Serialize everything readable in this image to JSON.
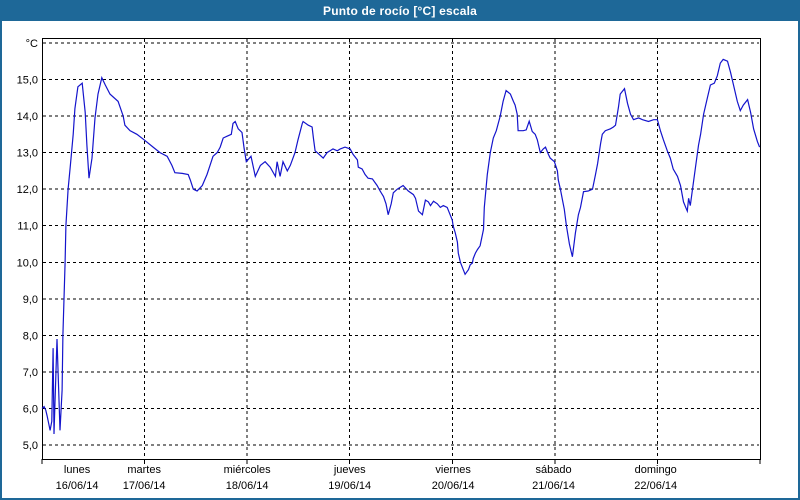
{
  "window": {
    "title": "Punto de rocío [°C] escala"
  },
  "colors": {
    "title_bar": "#1e6898",
    "window_border": "#1e6898",
    "series_line": "#1414cc",
    "grid": "#000000",
    "plot_background": "#ffffff",
    "label_text": "#000000"
  },
  "chart_data": {
    "type": "line",
    "title": "Punto de rocío [°C] escala",
    "ylabel": "°C",
    "y_unit_label": "°C",
    "ylim": [
      4.6,
      16.15
    ],
    "xlim_hours": [
      0,
      168
    ],
    "grid": "dashed",
    "legend": "none",
    "y_ticks": [
      {
        "v": 15,
        "label": "15,0"
      },
      {
        "v": 14,
        "label": "14,0"
      },
      {
        "v": 13,
        "label": "13,0"
      },
      {
        "v": 12,
        "label": "12,0"
      },
      {
        "v": 11,
        "label": "11,0"
      },
      {
        "v": 10,
        "label": "10,0"
      },
      {
        "v": 9,
        "label": "9,0"
      },
      {
        "v": 8,
        "label": "8,0"
      },
      {
        "v": 7,
        "label": "7,0"
      },
      {
        "v": 6,
        "label": "6,0"
      },
      {
        "v": 5,
        "label": "5,0"
      }
    ],
    "y_gridline_values": [
      5,
      6,
      7,
      8,
      9,
      10,
      11,
      12,
      13,
      14,
      15,
      16
    ],
    "x_gridlines_hours": [
      24,
      48,
      72,
      96,
      120,
      144
    ],
    "x_ticks_hours": [
      0,
      24,
      48,
      72,
      96,
      120,
      144,
      168
    ],
    "days": [
      {
        "name": "lunes",
        "date": "16/06/14",
        "center_hours": 8.2
      },
      {
        "name": "martes",
        "date": "17/06/14",
        "center_hours": 23.9
      },
      {
        "name": "miércoles",
        "date": "18/06/14",
        "center_hours": 48
      },
      {
        "name": "jueves",
        "date": "19/06/14",
        "center_hours": 72
      },
      {
        "name": "viernes",
        "date": "20/06/14",
        "center_hours": 96.2
      },
      {
        "name": "sábado",
        "date": "21/06/14",
        "center_hours": 119.7
      },
      {
        "name": "domingo",
        "date": "22/06/14",
        "center_hours": 143.6
      }
    ],
    "series": [
      {
        "name": "Punto de rocío",
        "color": "#1414cc",
        "points": [
          [
            0,
            6
          ],
          [
            0.5,
            6.05
          ],
          [
            0.9,
            5.95
          ],
          [
            1.2,
            5.8
          ],
          [
            1.9,
            5.4
          ],
          [
            2.3,
            5.65
          ],
          [
            2.6,
            7.65
          ],
          [
            2.8,
            5.3
          ],
          [
            3.5,
            7.9
          ],
          [
            4.2,
            5.4
          ],
          [
            4.7,
            6.5
          ],
          [
            4.9,
            8
          ],
          [
            5.4,
            10
          ],
          [
            5.6,
            11
          ],
          [
            6.1,
            12
          ],
          [
            6.6,
            12.6
          ],
          [
            7.3,
            13.5
          ],
          [
            7.7,
            14.2
          ],
          [
            8.4,
            14.8
          ],
          [
            9.4,
            14.9
          ],
          [
            10.1,
            14.1
          ],
          [
            10.5,
            13.2
          ],
          [
            11,
            12.3
          ],
          [
            11.7,
            12.85
          ],
          [
            12.4,
            13.95
          ],
          [
            13.1,
            14.6
          ],
          [
            14,
            15.05
          ],
          [
            14.8,
            14.85
          ],
          [
            15.9,
            14.6
          ],
          [
            17.8,
            14.4
          ],
          [
            19,
            14
          ],
          [
            19.4,
            13.75
          ],
          [
            20.6,
            13.6
          ],
          [
            22.2,
            13.5
          ],
          [
            23.9,
            13.35
          ],
          [
            26,
            13.15
          ],
          [
            27.6,
            13
          ],
          [
            29.3,
            12.9
          ],
          [
            30.4,
            12.65
          ],
          [
            31.1,
            12.45
          ],
          [
            32.8,
            12.43
          ],
          [
            34.2,
            12.4
          ],
          [
            34.7,
            12.25
          ],
          [
            35.4,
            12
          ],
          [
            36.3,
            11.95
          ],
          [
            37.5,
            12.1
          ],
          [
            38.6,
            12.4
          ],
          [
            39.3,
            12.65
          ],
          [
            40,
            12.9
          ],
          [
            41,
            13
          ],
          [
            41.7,
            13.15
          ],
          [
            42.4,
            13.4
          ],
          [
            43.3,
            13.45
          ],
          [
            44.3,
            13.5
          ],
          [
            44.7,
            13.8
          ],
          [
            45.2,
            13.85
          ],
          [
            45.9,
            13.65
          ],
          [
            46.8,
            13.55
          ],
          [
            47.3,
            13.1
          ],
          [
            47.8,
            12.75
          ],
          [
            48.9,
            12.9
          ],
          [
            49.9,
            12.35
          ],
          [
            51.1,
            12.65
          ],
          [
            52.2,
            12.75
          ],
          [
            53.4,
            12.6
          ],
          [
            54.6,
            12.35
          ],
          [
            55,
            12.75
          ],
          [
            55.7,
            12.35
          ],
          [
            56.4,
            12.75
          ],
          [
            57.4,
            12.5
          ],
          [
            58.1,
            12.65
          ],
          [
            59.2,
            13
          ],
          [
            59.9,
            13.35
          ],
          [
            60.9,
            13.8
          ],
          [
            61.1,
            13.85
          ],
          [
            62.3,
            13.75
          ],
          [
            63.2,
            13.7
          ],
          [
            63.5,
            13.4
          ],
          [
            63.9,
            13.05
          ],
          [
            64.4,
            13
          ],
          [
            65.8,
            12.85
          ],
          [
            66.7,
            13
          ],
          [
            68.1,
            13.1
          ],
          [
            69.1,
            13.05
          ],
          [
            69.8,
            13.1
          ],
          [
            70.9,
            13.15
          ],
          [
            72.1,
            13.1
          ],
          [
            72.8,
            12.95
          ],
          [
            73.8,
            12.8
          ],
          [
            74,
            12.6
          ],
          [
            74.9,
            12.55
          ],
          [
            75.6,
            12.4
          ],
          [
            76.3,
            12.3
          ],
          [
            77.3,
            12.28
          ],
          [
            78.4,
            12.1
          ],
          [
            79.1,
            11.95
          ],
          [
            79.9,
            11.8
          ],
          [
            80.5,
            11.6
          ],
          [
            81,
            11.3
          ],
          [
            81.7,
            11.6
          ],
          [
            82.2,
            11.9
          ],
          [
            83.1,
            12
          ],
          [
            84.5,
            12.1
          ],
          [
            85.7,
            11.95
          ],
          [
            86.9,
            11.85
          ],
          [
            87.4,
            11.75
          ],
          [
            88.1,
            11.4
          ],
          [
            89,
            11.3
          ],
          [
            89.7,
            11.7
          ],
          [
            90.4,
            11.65
          ],
          [
            90.9,
            11.55
          ],
          [
            91.6,
            11.67
          ],
          [
            92.5,
            11.6
          ],
          [
            93.2,
            11.5
          ],
          [
            93.9,
            11.55
          ],
          [
            94.8,
            11.5
          ],
          [
            95.5,
            11.3
          ],
          [
            96,
            11.15
          ],
          [
            96.2,
            11
          ],
          [
            96.7,
            10.8
          ],
          [
            97.2,
            10.55
          ],
          [
            97.4,
            10.25
          ],
          [
            97.9,
            10
          ],
          [
            98.4,
            9.85
          ],
          [
            99,
            9.67
          ],
          [
            99.8,
            9.8
          ],
          [
            100.2,
            9.93
          ],
          [
            100.7,
            9.98
          ],
          [
            100.9,
            10.1
          ],
          [
            101.4,
            10.25
          ],
          [
            101.9,
            10.35
          ],
          [
            102.5,
            10.45
          ],
          [
            103.3,
            10.9
          ],
          [
            103.5,
            11.5
          ],
          [
            104.2,
            12.4
          ],
          [
            104.9,
            13
          ],
          [
            105.6,
            13.4
          ],
          [
            106.3,
            13.6
          ],
          [
            107.2,
            14
          ],
          [
            107.9,
            14.4
          ],
          [
            108.6,
            14.7
          ],
          [
            109.6,
            14.6
          ],
          [
            110.3,
            14.4
          ],
          [
            110.7,
            14.3
          ],
          [
            111.2,
            14.05
          ],
          [
            111.4,
            13.6
          ],
          [
            112.6,
            13.6
          ],
          [
            113.3,
            13.62
          ],
          [
            114,
            13.86
          ],
          [
            114.7,
            13.58
          ],
          [
            115.4,
            13.5
          ],
          [
            115.9,
            13.35
          ],
          [
            116.6,
            13
          ],
          [
            117.3,
            13.1
          ],
          [
            117.8,
            13.15
          ],
          [
            118.5,
            12.95
          ],
          [
            118.9,
            12.85
          ],
          [
            119.9,
            12.75
          ],
          [
            120.6,
            12.5
          ],
          [
            120.8,
            12.25
          ],
          [
            121.3,
            12
          ],
          [
            121.8,
            11.7
          ],
          [
            122.2,
            11.45
          ],
          [
            122.7,
            11
          ],
          [
            123.4,
            10.5
          ],
          [
            124.1,
            10.15
          ],
          [
            124.8,
            10.8
          ],
          [
            125.5,
            11.3
          ],
          [
            126,
            11.5
          ],
          [
            126.7,
            11.93
          ],
          [
            127.8,
            11.95
          ],
          [
            128.8,
            12
          ],
          [
            129.5,
            12.4
          ],
          [
            130,
            12.7
          ],
          [
            130.7,
            13.25
          ],
          [
            131.1,
            13.5
          ],
          [
            131.8,
            13.6
          ],
          [
            133,
            13.65
          ],
          [
            133.7,
            13.7
          ],
          [
            134.2,
            13.75
          ],
          [
            134.9,
            14.25
          ],
          [
            135.3,
            14.6
          ],
          [
            136.3,
            14.75
          ],
          [
            137,
            14.35
          ],
          [
            137.7,
            14.05
          ],
          [
            138.4,
            13.9
          ],
          [
            139.6,
            13.95
          ],
          [
            140.5,
            13.9
          ],
          [
            141.9,
            13.85
          ],
          [
            143.1,
            13.9
          ],
          [
            144,
            13.9
          ],
          [
            144.7,
            13.6
          ],
          [
            145.4,
            13.35
          ],
          [
            146.3,
            13.05
          ],
          [
            147,
            12.85
          ],
          [
            147.7,
            12.55
          ],
          [
            148.7,
            12.35
          ],
          [
            149.4,
            12.1
          ],
          [
            150.1,
            11.65
          ],
          [
            150.8,
            11.45
          ],
          [
            151,
            11.4
          ],
          [
            151.3,
            11.75
          ],
          [
            151.7,
            11.55
          ],
          [
            152.2,
            12
          ],
          [
            152.9,
            12.6
          ],
          [
            153.6,
            13.2
          ],
          [
            154.1,
            13.5
          ],
          [
            154.8,
            14.05
          ],
          [
            155.7,
            14.5
          ],
          [
            156.4,
            14.85
          ],
          [
            157.3,
            14.9
          ],
          [
            158,
            15.1
          ],
          [
            158.7,
            15.45
          ],
          [
            159.4,
            15.55
          ],
          [
            160.4,
            15.5
          ],
          [
            161.1,
            15.2
          ],
          [
            161.8,
            14.85
          ],
          [
            162.7,
            14.4
          ],
          [
            163.4,
            14.15
          ],
          [
            164.1,
            14.3
          ],
          [
            165.1,
            14.45
          ],
          [
            165.8,
            14.1
          ],
          [
            166.5,
            13.65
          ],
          [
            167.4,
            13.3
          ],
          [
            167.9,
            13.15
          ]
        ]
      }
    ]
  }
}
